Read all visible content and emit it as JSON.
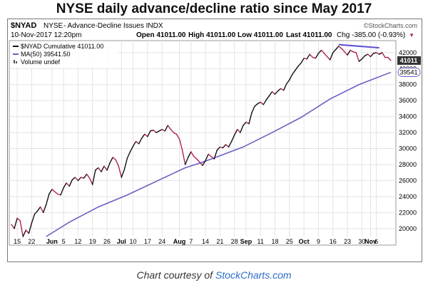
{
  "page_title": "NYSE daily advance/decline ratio since May 2017",
  "credit": {
    "prefix": "Chart courtesy of ",
    "site": "StockCharts.com"
  },
  "header": {
    "symbol": "$NYAD",
    "exchange": "NYSE",
    "description": "- Advance-Decline Issues INDX",
    "watermark": "©StockCharts.com",
    "date": "10-Nov-2017 12:20pm",
    "open": "Open 41011.00",
    "high": "High 41011.00",
    "low": "Low 41011.00",
    "last": "Last 41011.00",
    "chg": "Chg -385.00 (-0.93%)",
    "chg_arrow": "▼"
  },
  "legend": {
    "line1": "$NYAD Cumulative 41011.00",
    "line2": "MA(50) 39541.50",
    "line3": "Volume undef"
  },
  "colors": {
    "up": "#111111",
    "down": "#b0205a",
    "ma": "#6a5fc8",
    "trendline": "#5b4fd6",
    "grid": "#e3e3e3",
    "last_box": "#333333"
  },
  "chart_data": {
    "type": "line",
    "title": "NYSE daily advance/decline ratio since May 2017",
    "ylim": [
      19000,
      43500
    ],
    "y_ticks": [
      20000,
      22000,
      24000,
      26000,
      28000,
      30000,
      32000,
      34000,
      36000,
      38000,
      40000,
      42000
    ],
    "y_tick_labels": [
      "20000",
      "22000",
      "24000",
      "26000",
      "28000",
      "30000",
      "32000",
      "34000",
      "36000",
      "38000",
      "40000",
      "42000"
    ],
    "last_value_label": "41011",
    "ma_value_label": "39541",
    "x_tick_labels": [
      {
        "label": "15",
        "day": 2,
        "bold": false
      },
      {
        "label": "22",
        "day": 7,
        "bold": false
      },
      {
        "label": "Jun",
        "day": 14,
        "bold": true
      },
      {
        "label": "5",
        "day": 18,
        "bold": false
      },
      {
        "label": "12",
        "day": 23,
        "bold": false
      },
      {
        "label": "19",
        "day": 28,
        "bold": false
      },
      {
        "label": "26",
        "day": 33,
        "bold": false
      },
      {
        "label": "Jul",
        "day": 38,
        "bold": true
      },
      {
        "label": "10",
        "day": 42,
        "bold": false
      },
      {
        "label": "17",
        "day": 47,
        "bold": false
      },
      {
        "label": "24",
        "day": 52,
        "bold": false
      },
      {
        "label": "Aug",
        "day": 58,
        "bold": true
      },
      {
        "label": "7",
        "day": 62,
        "bold": false
      },
      {
        "label": "14",
        "day": 67,
        "bold": false
      },
      {
        "label": "21",
        "day": 72,
        "bold": false
      },
      {
        "label": "28",
        "day": 77,
        "bold": false
      },
      {
        "label": "Sep",
        "day": 81,
        "bold": true
      },
      {
        "label": "11",
        "day": 86,
        "bold": false
      },
      {
        "label": "18",
        "day": 91,
        "bold": false
      },
      {
        "label": "25",
        "day": 96,
        "bold": false
      },
      {
        "label": "Oct",
        "day": 101,
        "bold": true
      },
      {
        "label": "9",
        "day": 106,
        "bold": false
      },
      {
        "label": "16",
        "day": 111,
        "bold": false
      },
      {
        "label": "23",
        "day": 116,
        "bold": false
      },
      {
        "label": "30",
        "day": 121,
        "bold": false
      },
      {
        "label": "Nov",
        "day": 124,
        "bold": true
      },
      {
        "label": "6",
        "day": 126,
        "bold": false
      }
    ],
    "series": [
      {
        "name": "$NYAD Cumulative",
        "values": [
          {
            "x": 0,
            "y": 20500
          },
          {
            "x": 1,
            "y": 20000
          },
          {
            "x": 2,
            "y": 21300
          },
          {
            "x": 3,
            "y": 21000
          },
          {
            "x": 4,
            "y": 19000
          },
          {
            "x": 5,
            "y": 19800
          },
          {
            "x": 6,
            "y": 19400
          },
          {
            "x": 7,
            "y": 20700
          },
          {
            "x": 8,
            "y": 21800
          },
          {
            "x": 9,
            "y": 22200
          },
          {
            "x": 10,
            "y": 22700
          },
          {
            "x": 11,
            "y": 22000
          },
          {
            "x": 12,
            "y": 23000
          },
          {
            "x": 13,
            "y": 24300
          },
          {
            "x": 14,
            "y": 24900
          },
          {
            "x": 15,
            "y": 24600
          },
          {
            "x": 16,
            "y": 24300
          },
          {
            "x": 17,
            "y": 24200
          },
          {
            "x": 18,
            "y": 25100
          },
          {
            "x": 19,
            "y": 25700
          },
          {
            "x": 20,
            "y": 25300
          },
          {
            "x": 21,
            "y": 26100
          },
          {
            "x": 22,
            "y": 26400
          },
          {
            "x": 23,
            "y": 26000
          },
          {
            "x": 24,
            "y": 26400
          },
          {
            "x": 25,
            "y": 26300
          },
          {
            "x": 26,
            "y": 26800
          },
          {
            "x": 27,
            "y": 26300
          },
          {
            "x": 28,
            "y": 25500
          },
          {
            "x": 29,
            "y": 27300
          },
          {
            "x": 30,
            "y": 27600
          },
          {
            "x": 31,
            "y": 27100
          },
          {
            "x": 32,
            "y": 27800
          },
          {
            "x": 33,
            "y": 27300
          },
          {
            "x": 34,
            "y": 28200
          },
          {
            "x": 35,
            "y": 28900
          },
          {
            "x": 36,
            "y": 28600
          },
          {
            "x": 37,
            "y": 27800
          },
          {
            "x": 38,
            "y": 26400
          },
          {
            "x": 39,
            "y": 27400
          },
          {
            "x": 40,
            "y": 28800
          },
          {
            "x": 41,
            "y": 29600
          },
          {
            "x": 42,
            "y": 30300
          },
          {
            "x": 43,
            "y": 30900
          },
          {
            "x": 44,
            "y": 30600
          },
          {
            "x": 45,
            "y": 31300
          },
          {
            "x": 46,
            "y": 31800
          },
          {
            "x": 47,
            "y": 31500
          },
          {
            "x": 48,
            "y": 32200
          },
          {
            "x": 49,
            "y": 32300
          },
          {
            "x": 50,
            "y": 32000
          },
          {
            "x": 51,
            "y": 32200
          },
          {
            "x": 52,
            "y": 32400
          },
          {
            "x": 53,
            "y": 32200
          },
          {
            "x": 54,
            "y": 32900
          },
          {
            "x": 55,
            "y": 32400
          },
          {
            "x": 56,
            "y": 32000
          },
          {
            "x": 57,
            "y": 31800
          },
          {
            "x": 58,
            "y": 31200
          },
          {
            "x": 59,
            "y": 29800
          },
          {
            "x": 60,
            "y": 28000
          },
          {
            "x": 61,
            "y": 28900
          },
          {
            "x": 62,
            "y": 29600
          },
          {
            "x": 63,
            "y": 29000
          },
          {
            "x": 64,
            "y": 28700
          },
          {
            "x": 65,
            "y": 28300
          },
          {
            "x": 66,
            "y": 27900
          },
          {
            "x": 67,
            "y": 28500
          },
          {
            "x": 68,
            "y": 29300
          },
          {
            "x": 69,
            "y": 29000
          },
          {
            "x": 70,
            "y": 28700
          },
          {
            "x": 71,
            "y": 29800
          },
          {
            "x": 72,
            "y": 30200
          },
          {
            "x": 73,
            "y": 30100
          },
          {
            "x": 74,
            "y": 30500
          },
          {
            "x": 75,
            "y": 30200
          },
          {
            "x": 76,
            "y": 30900
          },
          {
            "x": 77,
            "y": 31700
          },
          {
            "x": 78,
            "y": 32400
          },
          {
            "x": 79,
            "y": 32000
          },
          {
            "x": 80,
            "y": 32900
          },
          {
            "x": 81,
            "y": 33300
          },
          {
            "x": 82,
            "y": 33100
          },
          {
            "x": 83,
            "y": 34500
          },
          {
            "x": 84,
            "y": 35300
          },
          {
            "x": 85,
            "y": 35600
          },
          {
            "x": 86,
            "y": 35800
          },
          {
            "x": 87,
            "y": 35500
          },
          {
            "x": 88,
            "y": 36100
          },
          {
            "x": 89,
            "y": 36600
          },
          {
            "x": 90,
            "y": 37100
          },
          {
            "x": 91,
            "y": 36800
          },
          {
            "x": 92,
            "y": 37200
          },
          {
            "x": 93,
            "y": 37500
          },
          {
            "x": 94,
            "y": 37300
          },
          {
            "x": 95,
            "y": 38100
          },
          {
            "x": 96,
            "y": 38600
          },
          {
            "x": 97,
            "y": 39300
          },
          {
            "x": 98,
            "y": 39800
          },
          {
            "x": 99,
            "y": 40300
          },
          {
            "x": 100,
            "y": 40700
          },
          {
            "x": 101,
            "y": 41300
          },
          {
            "x": 102,
            "y": 41200
          },
          {
            "x": 103,
            "y": 41800
          },
          {
            "x": 104,
            "y": 41400
          },
          {
            "x": 105,
            "y": 41300
          },
          {
            "x": 106,
            "y": 41900
          },
          {
            "x": 107,
            "y": 42300
          },
          {
            "x": 108,
            "y": 41900
          },
          {
            "x": 109,
            "y": 41500
          },
          {
            "x": 110,
            "y": 41100
          },
          {
            "x": 111,
            "y": 42000
          },
          {
            "x": 112,
            "y": 42400
          },
          {
            "x": 113,
            "y": 42800
          },
          {
            "x": 114,
            "y": 42500
          },
          {
            "x": 115,
            "y": 42100
          },
          {
            "x": 116,
            "y": 41700
          },
          {
            "x": 117,
            "y": 42300
          },
          {
            "x": 118,
            "y": 42100
          },
          {
            "x": 119,
            "y": 42000
          },
          {
            "x": 120,
            "y": 40900
          },
          {
            "x": 121,
            "y": 41200
          },
          {
            "x": 122,
            "y": 41600
          },
          {
            "x": 123,
            "y": 41800
          },
          {
            "x": 124,
            "y": 41500
          },
          {
            "x": 125,
            "y": 41900
          },
          {
            "x": 126,
            "y": 42000
          },
          {
            "x": 127,
            "y": 41800
          },
          {
            "x": 128,
            "y": 42000
          },
          {
            "x": 129,
            "y": 41400
          },
          {
            "x": 130,
            "y": 41396
          },
          {
            "x": 131,
            "y": 41011
          }
        ]
      },
      {
        "name": "MA(50)",
        "values": [
          {
            "x": 12,
            "y": 19000
          },
          {
            "x": 20,
            "y": 20800
          },
          {
            "x": 30,
            "y": 22700
          },
          {
            "x": 40,
            "y": 24200
          },
          {
            "x": 50,
            "y": 25900
          },
          {
            "x": 60,
            "y": 27600
          },
          {
            "x": 66,
            "y": 28300
          },
          {
            "x": 72,
            "y": 29100
          },
          {
            "x": 80,
            "y": 30200
          },
          {
            "x": 90,
            "y": 32000
          },
          {
            "x": 100,
            "y": 33900
          },
          {
            "x": 110,
            "y": 36200
          },
          {
            "x": 120,
            "y": 38000
          },
          {
            "x": 131,
            "y": 39541
          }
        ]
      }
    ],
    "trendline": [
      {
        "x": 113,
        "y": 43000
      },
      {
        "x": 127,
        "y": 42600
      }
    ]
  }
}
